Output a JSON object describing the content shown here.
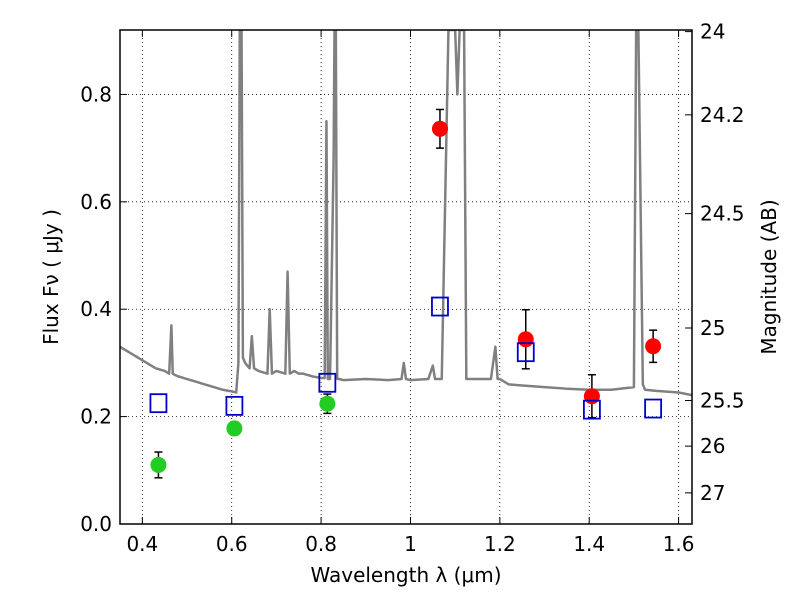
{
  "chart_data": {
    "type": "scatter",
    "xlabel": "Wavelength  λ (μm)",
    "ylabel": "Flux  Fν  ( μJy )",
    "ylabel_right": "Magnitude (AB)",
    "xlim": [
      0.35,
      1.63
    ],
    "ylim": [
      0.0,
      0.92
    ],
    "grid": true,
    "x_ticks": [
      {
        "value": 0.4,
        "label": "0.4"
      },
      {
        "value": 0.6,
        "label": "0.6"
      },
      {
        "value": 0.8,
        "label": "0.8"
      },
      {
        "value": 1.0,
        "label": "1"
      },
      {
        "value": 1.2,
        "label": "1.2"
      },
      {
        "value": 1.4,
        "label": "1.4"
      },
      {
        "value": 1.6,
        "label": "1.6"
      }
    ],
    "y_ticks": [
      {
        "value": 0.0,
        "label": "0.0"
      },
      {
        "value": 0.2,
        "label": "0.2"
      },
      {
        "value": 0.4,
        "label": "0.4"
      },
      {
        "value": 0.6,
        "label": "0.6"
      },
      {
        "value": 0.8,
        "label": "0.8"
      }
    ],
    "mag_ticks": [
      {
        "label": "24",
        "flux": 0.917
      },
      {
        "label": "24.2",
        "flux": 0.762
      },
      {
        "label": "24.5",
        "flux": 0.578
      },
      {
        "label": "25",
        "flux": 0.365
      },
      {
        "label": "25.5",
        "flux": 0.23
      },
      {
        "label": "26",
        "flux": 0.145
      },
      {
        "label": "27",
        "flux": 0.058
      }
    ],
    "series": [
      {
        "type": "line",
        "color": "#808080",
        "x": [
          0.35,
          0.37,
          0.39,
          0.41,
          0.43,
          0.45,
          0.46,
          0.465,
          0.468,
          0.472,
          0.48,
          0.5,
          0.52,
          0.54,
          0.56,
          0.58,
          0.6,
          0.61,
          0.615,
          0.618,
          0.62,
          0.622,
          0.625,
          0.63,
          0.64,
          0.645,
          0.65,
          0.66,
          0.68,
          0.685,
          0.69,
          0.7,
          0.72,
          0.725,
          0.73,
          0.74,
          0.75,
          0.76,
          0.78,
          0.8,
          0.808,
          0.812,
          0.815,
          0.82,
          0.828,
          0.83,
          0.833,
          0.836,
          0.84,
          0.85,
          0.9,
          0.95,
          0.98,
          0.985,
          0.99,
          1.0,
          1.04,
          1.05,
          1.055,
          1.06,
          1.07,
          1.085,
          1.1,
          1.105,
          1.11,
          1.12,
          1.125,
          1.18,
          1.19,
          1.195,
          1.2,
          1.22,
          1.25,
          1.3,
          1.35,
          1.4,
          1.45,
          1.5,
          1.505,
          1.51,
          1.52,
          1.525,
          1.55,
          1.6,
          1.63
        ],
        "y": [
          0.33,
          0.32,
          0.31,
          0.3,
          0.29,
          0.285,
          0.28,
          0.37,
          0.28,
          0.278,
          0.275,
          0.27,
          0.265,
          0.26,
          0.255,
          0.25,
          0.247,
          0.245,
          0.3,
          0.92,
          0.92,
          0.92,
          0.31,
          0.3,
          0.29,
          0.35,
          0.29,
          0.285,
          0.28,
          0.4,
          0.28,
          0.285,
          0.28,
          0.47,
          0.28,
          0.285,
          0.28,
          0.28,
          0.275,
          0.272,
          0.272,
          0.75,
          0.27,
          0.27,
          0.68,
          0.92,
          0.92,
          0.27,
          0.27,
          0.268,
          0.27,
          0.268,
          0.27,
          0.3,
          0.27,
          0.268,
          0.27,
          0.295,
          0.27,
          0.27,
          0.27,
          0.92,
          0.92,
          0.8,
          0.92,
          0.92,
          0.27,
          0.27,
          0.33,
          0.27,
          0.27,
          0.26,
          0.258,
          0.255,
          0.252,
          0.25,
          0.25,
          0.255,
          0.92,
          0.92,
          0.26,
          0.25,
          0.248,
          0.245,
          0.24
        ]
      },
      {
        "type": "scatter",
        "marker": "circle",
        "color": "#22cc22",
        "x": [
          0.436,
          0.606,
          0.814
        ],
        "y": [
          0.11,
          0.178,
          0.224
        ],
        "yerr": [
          0.024,
          0.012,
          0.018
        ]
      },
      {
        "type": "scatter",
        "marker": "circle",
        "color": "#ff0000",
        "x": [
          1.066,
          1.258,
          1.406,
          1.543
        ],
        "y": [
          0.736,
          0.344,
          0.238,
          0.331
        ],
        "yerr": [
          0.036,
          0.055,
          0.04,
          0.03
        ]
      },
      {
        "type": "scatter",
        "marker": "open-square",
        "color": "#0000cc",
        "x": [
          0.436,
          0.606,
          0.814,
          1.066,
          1.258,
          1.406,
          1.543
        ],
        "y": [
          0.225,
          0.22,
          0.263,
          0.405,
          0.32,
          0.213,
          0.215
        ]
      }
    ]
  }
}
